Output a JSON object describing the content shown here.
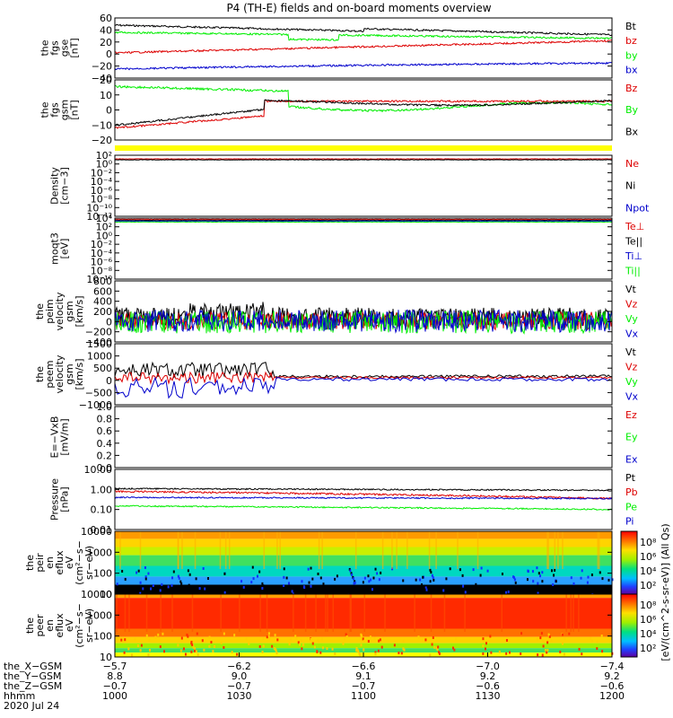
{
  "title": "P4 (TH-E) fields and on-board moments overview",
  "colors": {
    "black": "#000000",
    "red": "#dd0000",
    "green": "#00ee00",
    "blue": "#0000cc",
    "yellow": "#ffff00"
  },
  "panels": [
    {
      "ylabel": [
        "the",
        "fgs",
        "gse",
        "[nT]"
      ],
      "ticks": [
        "60",
        "40",
        "20",
        "0",
        "−20",
        "−40"
      ],
      "legend": [
        "Bt",
        "bz",
        "by",
        "bx"
      ]
    },
    {
      "ylabel": [
        "the",
        "fgs",
        "gsm",
        "[nT]"
      ],
      "ticks": [
        "20",
        "10",
        "0",
        "−10",
        "−20"
      ],
      "legend": [
        "Bz",
        "By",
        "Bx"
      ]
    },
    {
      "ylabel": [
        "Density",
        "[cm−3]"
      ],
      "ticks": [
        "10²",
        "10⁰",
        "10⁻²",
        "10⁻⁴",
        "10⁻⁶",
        "10⁻⁸",
        "10⁻¹⁰",
        "10⁻¹²"
      ],
      "legend": [
        "Ne",
        "Ni",
        "Npot"
      ]
    },
    {
      "ylabel": [
        "moqt3",
        "[eV]"
      ],
      "ticks": [
        "10⁴",
        "10²",
        "10⁰",
        "10⁻²",
        "10⁻⁴",
        "10⁻⁶",
        "10⁻⁸",
        "10⁻¹⁰"
      ],
      "legend": [
        "Te⊥",
        "Te||",
        "Ti⊥",
        "Ti||"
      ]
    },
    {
      "ylabel": [
        "the",
        "peim",
        "velocity",
        "gsm",
        "[km/s]"
      ],
      "ticks": [
        "800",
        "600",
        "400",
        "200",
        "0",
        "−200",
        "−400"
      ],
      "legend": [
        "Vt",
        "Vz",
        "Vy",
        "Vx"
      ]
    },
    {
      "ylabel": [
        "the",
        "peem",
        "velocity",
        "gsm",
        "[km/s]"
      ],
      "ticks": [
        "1500",
        "1000",
        "500",
        "0",
        "−500",
        "−1000"
      ],
      "legend": [
        "Vt",
        "Vz",
        "Vy",
        "Vx"
      ]
    },
    {
      "ylabel": [
        "E=−VxB",
        "[mV/m]"
      ],
      "ticks": [
        "1.0",
        "0.8",
        "0.6",
        "0.4",
        "0.2",
        "0.0"
      ],
      "legend": [
        "Ez",
        "Ey",
        "Ex"
      ]
    },
    {
      "ylabel": [
        "Pressure",
        "[nPa]"
      ],
      "ticks": [
        "10.00",
        "1.00",
        "0.10",
        "0.01"
      ],
      "legend": [
        "Pt",
        "Pb",
        "Pe",
        "Pi"
      ]
    },
    {
      "ylabel": [
        "the",
        "peir",
        "en",
        "eflux",
        "eV",
        "(cm²−s−",
        "sr−eV)"
      ],
      "ticks": [
        "10000",
        "1000",
        "100",
        "10"
      ],
      "legend": []
    },
    {
      "ylabel": [
        "the",
        "peer",
        "en",
        "eflux",
        "eV",
        "(cm²−s−",
        "sr−eV)"
      ],
      "ticks": [
        "10000",
        "1000",
        "100",
        "10"
      ],
      "legend": []
    }
  ],
  "colorbar": {
    "label": "[eV/(cm^2-s-sr-eV)] (All Qs)",
    "top_ticks": [
      "10⁸",
      "10⁶",
      "10⁴",
      "10²"
    ],
    "bottom_ticks": [
      "10⁸",
      "10⁶",
      "10⁴",
      "10²"
    ]
  },
  "footer": {
    "row_labels": [
      "the_X−GSM",
      "the_Y−GSM",
      "the_Z−GSM",
      "hhmm",
      "2020 Jul 24"
    ],
    "columns": [
      {
        "x": "−5.7",
        "y": "8.8",
        "z": "−0.7",
        "t": "1000"
      },
      {
        "x": "−6.2",
        "y": "9.0",
        "z": "−0.7",
        "t": "1030"
      },
      {
        "x": "−6.6",
        "y": "9.1",
        "z": "−0.7",
        "t": "1100"
      },
      {
        "x": "−7.0",
        "y": "9.2",
        "z": "−0.6",
        "t": "1130"
      },
      {
        "x": "−7.4",
        "y": "9.2",
        "z": "−0.6",
        "t": "1200"
      }
    ]
  },
  "chart_data": {
    "type": "line",
    "title": "P4 (TH-E) fields and on-board moments overview",
    "date": "2020 Jul 24",
    "x": [
      "1000",
      "1030",
      "1100",
      "1130",
      "1200"
    ],
    "series": [
      {
        "name": "Bt",
        "values": [
          48,
          40,
          27,
          27,
          30
        ]
      },
      {
        "name": "bz",
        "values": [
          5,
          10,
          16,
          20,
          22
        ]
      },
      {
        "name": "by",
        "values": [
          38,
          30,
          25,
          25,
          28
        ]
      },
      {
        "name": "bx",
        "values": [
          -25,
          -10,
          -5,
          -5,
          -12
        ]
      },
      {
        "name": "Pt",
        "values": [
          1.1,
          1.0,
          0.9,
          0.9,
          0.9
        ]
      },
      {
        "name": "Pb",
        "values": [
          0.8,
          0.5,
          0.3,
          0.3,
          0.3
        ]
      },
      {
        "name": "Pe",
        "values": [
          0.15,
          0.1,
          0.09,
          0.09,
          0.1
        ]
      },
      {
        "name": "Pi",
        "values": [
          0.4,
          0.4,
          0.4,
          0.4,
          0.35
        ]
      }
    ]
  }
}
